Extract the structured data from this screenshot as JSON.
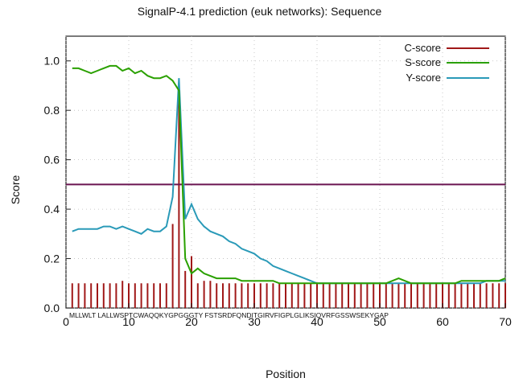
{
  "chart_data": {
    "type": "line",
    "title": "SignalP-4.1 prediction (euk networks): Sequence",
    "xlabel": "Position",
    "ylabel": "Score",
    "xlim": [
      0,
      70
    ],
    "ylim": [
      0,
      1.1
    ],
    "x_ticks": [
      "0",
      "10",
      "20",
      "30",
      "40",
      "50",
      "60",
      "70"
    ],
    "y_ticks": [
      "0.0",
      "0.2",
      "0.4",
      "0.6",
      "0.8",
      "1.0"
    ],
    "legend_position": "top-right",
    "threshold": 0.5,
    "sequence_text": "MLLWLT LALLWSPTCWAQQKYGPGGGTY FSTSRDFQNDITGIRVFIGPLGLIKSIQVRFGSSWSEKYGAP",
    "colors": {
      "c_score": "#a01818",
      "s_score": "#2aa000",
      "y_score": "#2a9ab8",
      "threshold": "#6a1450"
    },
    "series": [
      {
        "name": "C-score",
        "style": "bars",
        "x": [
          1,
          2,
          3,
          4,
          5,
          6,
          7,
          8,
          9,
          10,
          11,
          12,
          13,
          14,
          15,
          16,
          17,
          18,
          19,
          20,
          21,
          22,
          23,
          24,
          25,
          26,
          27,
          28,
          29,
          30,
          31,
          32,
          33,
          34,
          35,
          36,
          37,
          38,
          39,
          40,
          41,
          42,
          43,
          44,
          45,
          46,
          47,
          48,
          49,
          50,
          51,
          52,
          53,
          54,
          55,
          56,
          57,
          58,
          59,
          60,
          61,
          62,
          63,
          64,
          65,
          66,
          67,
          68,
          69,
          70
        ],
        "values": [
          0.1,
          0.1,
          0.1,
          0.1,
          0.1,
          0.1,
          0.1,
          0.1,
          0.11,
          0.1,
          0.1,
          0.1,
          0.1,
          0.1,
          0.1,
          0.1,
          0.34,
          0.91,
          0.15,
          0.21,
          0.1,
          0.11,
          0.11,
          0.1,
          0.1,
          0.1,
          0.1,
          0.1,
          0.1,
          0.1,
          0.1,
          0.1,
          0.1,
          0.1,
          0.1,
          0.1,
          0.1,
          0.1,
          0.1,
          0.1,
          0.1,
          0.1,
          0.1,
          0.1,
          0.1,
          0.1,
          0.1,
          0.1,
          0.1,
          0.1,
          0.1,
          0.1,
          0.1,
          0.1,
          0.1,
          0.1,
          0.1,
          0.1,
          0.1,
          0.1,
          0.1,
          0.1,
          0.1,
          0.1,
          0.1,
          0.1,
          0.1,
          0.1,
          0.1,
          0.1
        ]
      },
      {
        "name": "S-score",
        "style": "line",
        "x": [
          1,
          2,
          3,
          4,
          5,
          6,
          7,
          8,
          9,
          10,
          11,
          12,
          13,
          14,
          15,
          16,
          17,
          18,
          19,
          20,
          21,
          22,
          23,
          24,
          25,
          26,
          27,
          28,
          29,
          30,
          31,
          32,
          33,
          34,
          35,
          36,
          37,
          38,
          39,
          40,
          41,
          42,
          43,
          44,
          45,
          46,
          47,
          48,
          49,
          50,
          51,
          52,
          53,
          54,
          55,
          56,
          57,
          58,
          59,
          60,
          61,
          62,
          63,
          64,
          65,
          66,
          67,
          68,
          69,
          70
        ],
        "values": [
          0.97,
          0.97,
          0.96,
          0.95,
          0.96,
          0.97,
          0.98,
          0.98,
          0.96,
          0.97,
          0.95,
          0.96,
          0.94,
          0.93,
          0.93,
          0.94,
          0.92,
          0.88,
          0.2,
          0.14,
          0.16,
          0.14,
          0.13,
          0.12,
          0.12,
          0.12,
          0.12,
          0.11,
          0.11,
          0.11,
          0.11,
          0.11,
          0.11,
          0.1,
          0.1,
          0.1,
          0.1,
          0.1,
          0.1,
          0.1,
          0.1,
          0.1,
          0.1,
          0.1,
          0.1,
          0.1,
          0.1,
          0.1,
          0.1,
          0.1,
          0.1,
          0.11,
          0.12,
          0.11,
          0.1,
          0.1,
          0.1,
          0.1,
          0.1,
          0.1,
          0.1,
          0.1,
          0.11,
          0.11,
          0.11,
          0.11,
          0.11,
          0.11,
          0.11,
          0.12
        ]
      },
      {
        "name": "Y-score",
        "style": "line",
        "x": [
          1,
          2,
          3,
          4,
          5,
          6,
          7,
          8,
          9,
          10,
          11,
          12,
          13,
          14,
          15,
          16,
          17,
          18,
          19,
          20,
          21,
          22,
          23,
          24,
          25,
          26,
          27,
          28,
          29,
          30,
          31,
          32,
          33,
          34,
          35,
          36,
          37,
          38,
          39,
          40,
          41,
          42,
          43,
          44,
          45,
          46,
          47,
          48,
          49,
          50,
          51,
          52,
          53,
          54,
          55,
          56,
          57,
          58,
          59,
          60,
          61,
          62,
          63,
          64,
          65,
          66,
          67,
          68,
          69,
          70
        ],
        "values": [
          0.31,
          0.32,
          0.32,
          0.32,
          0.32,
          0.33,
          0.33,
          0.32,
          0.33,
          0.32,
          0.31,
          0.3,
          0.32,
          0.31,
          0.31,
          0.33,
          0.45,
          0.93,
          0.36,
          0.42,
          0.36,
          0.33,
          0.31,
          0.3,
          0.29,
          0.27,
          0.26,
          0.24,
          0.23,
          0.22,
          0.2,
          0.19,
          0.17,
          0.16,
          0.15,
          0.14,
          0.13,
          0.12,
          0.11,
          0.1,
          0.1,
          0.1,
          0.1,
          0.1,
          0.1,
          0.1,
          0.1,
          0.1,
          0.1,
          0.1,
          0.1,
          0.1,
          0.1,
          0.1,
          0.1,
          0.1,
          0.1,
          0.1,
          0.1,
          0.1,
          0.1,
          0.1,
          0.1,
          0.1,
          0.1,
          0.1,
          0.11,
          0.11,
          0.11,
          0.11
        ]
      }
    ]
  }
}
